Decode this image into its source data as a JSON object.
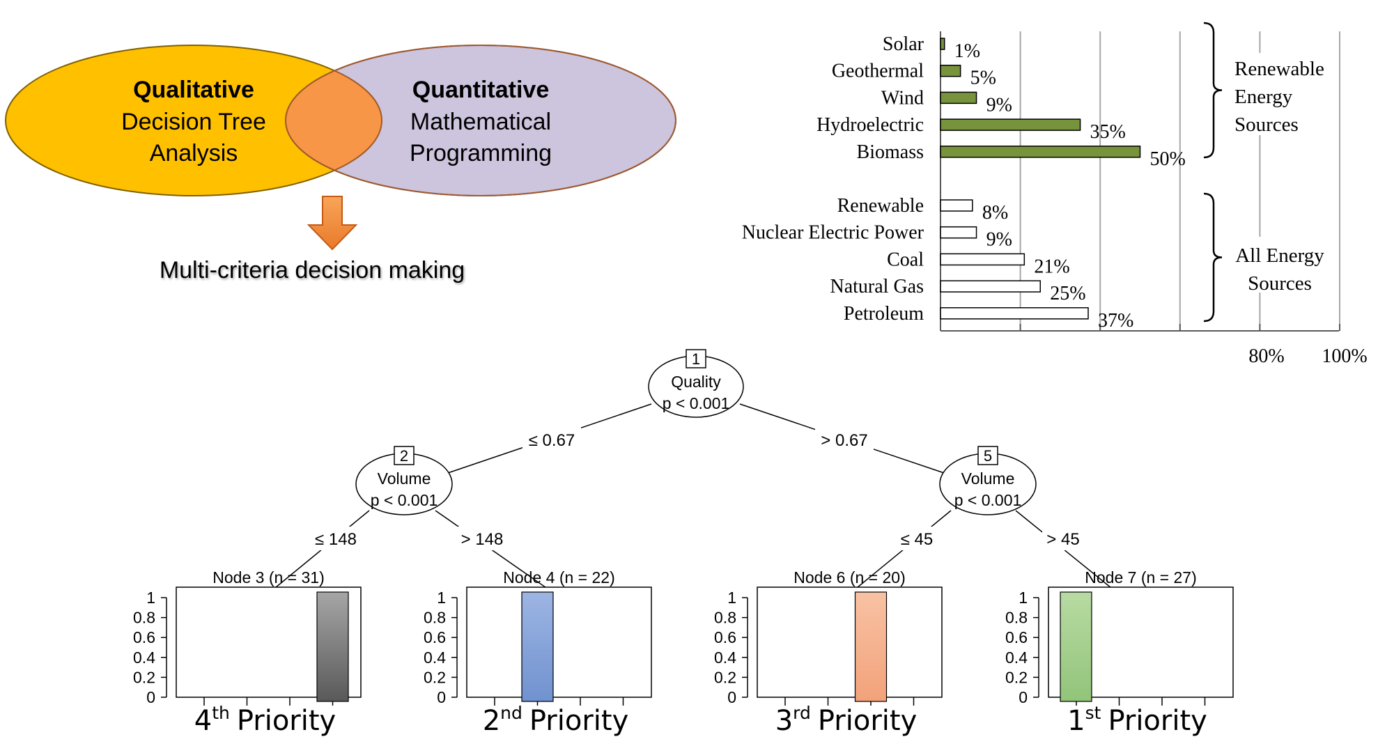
{
  "venn": {
    "left_title": "Qualitative",
    "left_line1": "Decision Tree",
    "left_line2": "Analysis",
    "right_title": "Quantitative",
    "right_line1": "Mathematical",
    "right_line2": "Programming",
    "result": "Multi-criteria decision making",
    "colors": {
      "left": "#FFC000",
      "right": "#CDC4DE",
      "overlap": "#F79646",
      "arrow": "#F79646"
    }
  },
  "chart_data": {
    "type": "bar",
    "orientation": "horizontal",
    "xlim": [
      0,
      100
    ],
    "x_tick_labels": [
      "80%",
      "100%"
    ],
    "groups": [
      {
        "label": [
          "Renewable",
          "Energy",
          "Sources"
        ],
        "color": "#77933C",
        "categories": [
          "Solar",
          "Geothermal",
          "Wind",
          "Hydroelectric",
          "Biomass"
        ],
        "values": [
          1,
          5,
          9,
          35,
          50
        ],
        "value_labels": [
          "1%",
          "5%",
          "9%",
          "35%",
          "50%"
        ]
      },
      {
        "label": [
          "All Energy",
          "Sources"
        ],
        "color": "#FFFFFF",
        "categories": [
          "Renewable",
          "Nuclear Electric Power",
          "Coal",
          "Natural Gas",
          "Petroleum"
        ],
        "values": [
          8,
          9,
          21,
          25,
          37
        ],
        "value_labels": [
          "8%",
          "9%",
          "21%",
          "25%",
          "37%"
        ]
      }
    ]
  },
  "tree": {
    "root": {
      "id": "1",
      "var": "Quality",
      "p": "p < 0.001"
    },
    "root_left_edge": "≤ 0.67",
    "root_right_edge": "> 0.67",
    "left_node": {
      "id": "2",
      "var": "Volume",
      "p": "p < 0.001",
      "left_edge": "≤ 148",
      "right_edge": "> 148"
    },
    "right_node": {
      "id": "5",
      "var": "Volume",
      "p": "p < 0.001",
      "left_edge": "≤ 45",
      "right_edge": "> 45"
    },
    "y_ticks": [
      "1",
      "0.8",
      "0.6",
      "0.4",
      "0.2",
      "0"
    ],
    "leaves": [
      {
        "title": "Node 3 (n = 31)",
        "bar_index": 3,
        "value": 1.0,
        "color": "#7F7F7F",
        "priority_num": "4",
        "priority_sup": "th",
        "priority_word": "Priority"
      },
      {
        "title": "Node 4 (n = 22)",
        "bar_index": 1,
        "value": 1.0,
        "color": "#8EA9DB",
        "priority_num": "2",
        "priority_sup": "nd",
        "priority_word": "Priority"
      },
      {
        "title": "Node 6 (n = 20)",
        "bar_index": 2,
        "value": 1.0,
        "color": "#F4B183",
        "priority_num": "3",
        "priority_sup": "rd",
        "priority_word": "Priority"
      },
      {
        "title": "Node 7 (n = 27)",
        "bar_index": 0,
        "value": 1.0,
        "color": "#A9D18E",
        "priority_num": "1",
        "priority_sup": "st",
        "priority_word": "Priority"
      }
    ]
  }
}
